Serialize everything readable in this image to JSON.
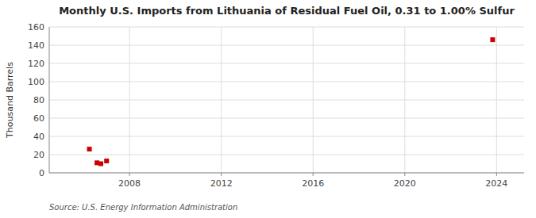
{
  "chart_data": {
    "type": "scatter",
    "title": "Monthly U.S. Imports from Lithuania of Residual Fuel Oil, 0.31 to 1.00% Sulfur",
    "y_label": "Thousand Barrels",
    "source": "Source: U.S. Energy Information Administration",
    "x": [
      2006.25,
      2006.58,
      2006.75,
      2007.0,
      2023.83
    ],
    "values": [
      26,
      11,
      10,
      13,
      146
    ],
    "color": "#cc0000",
    "marker": "square",
    "xlim": [
      2004.5,
      2025.2
    ],
    "ylim": [
      0,
      160
    ],
    "xticks": [
      2008,
      2012,
      2016,
      2020,
      2024
    ],
    "yticks": [
      0,
      20,
      40,
      60,
      80,
      100,
      120,
      140,
      160
    ],
    "grid": true
  }
}
